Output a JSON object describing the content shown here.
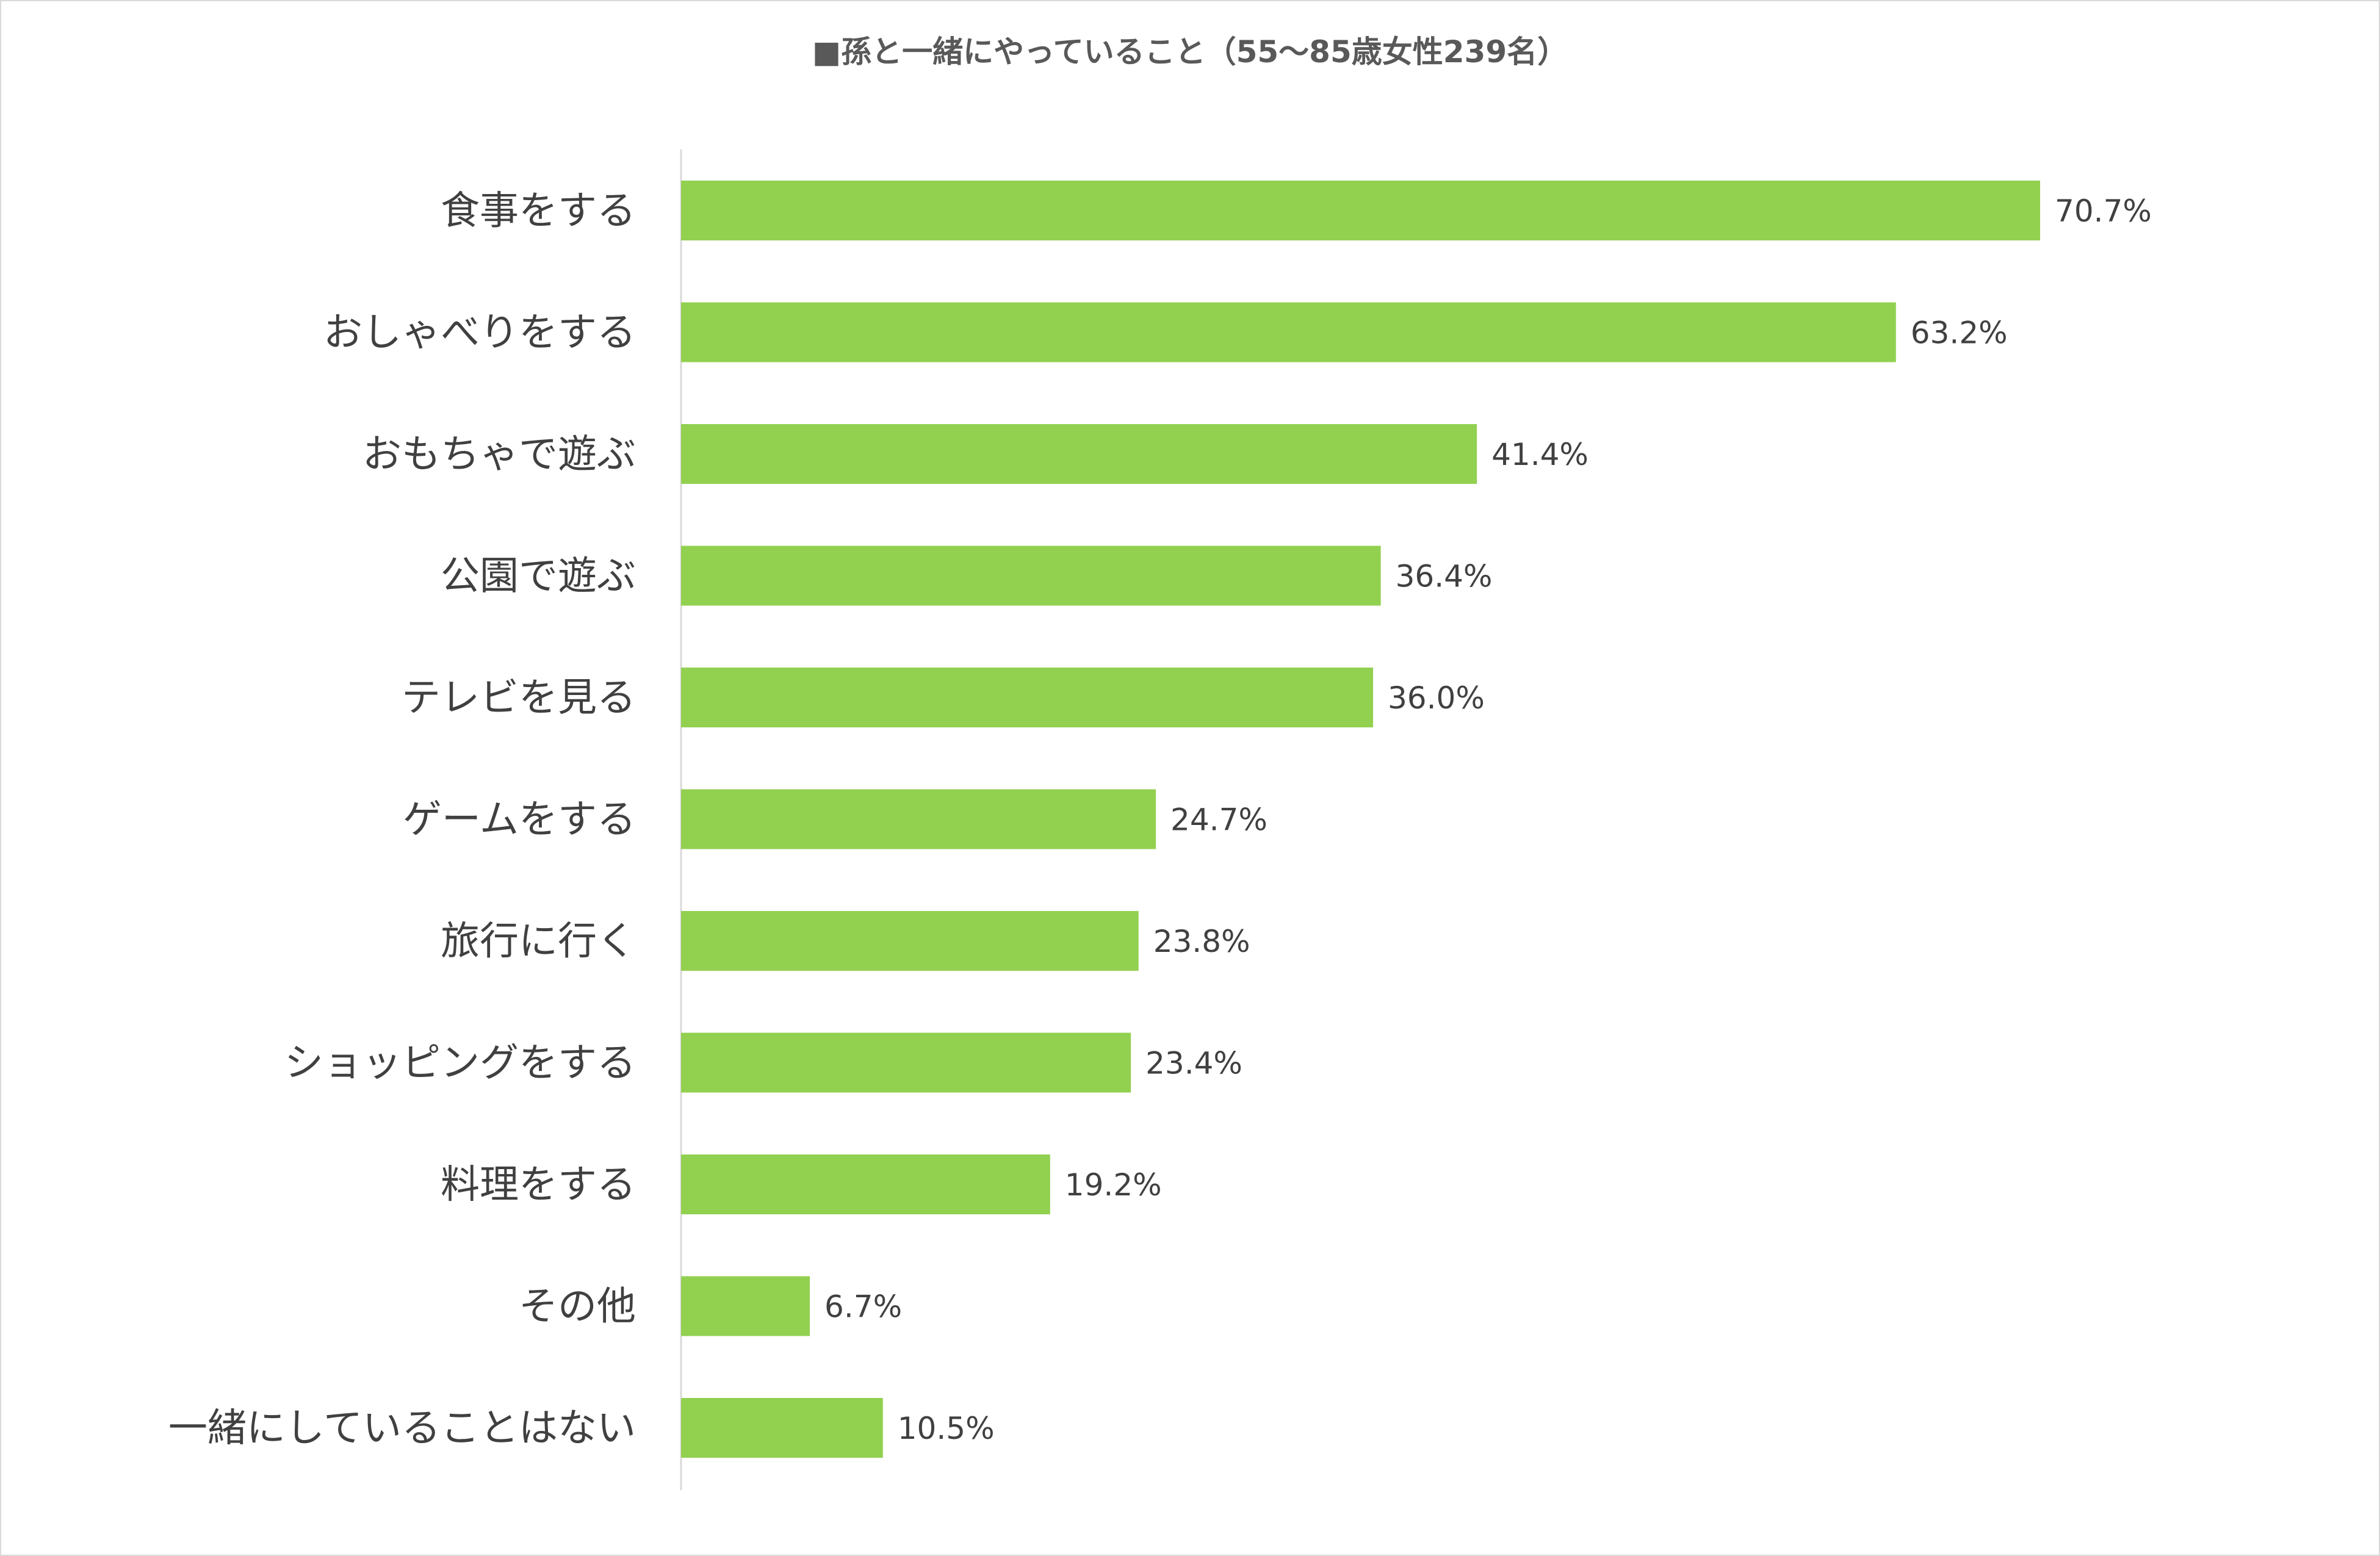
{
  "chart_data": {
    "type": "bar",
    "orientation": "horizontal",
    "title": "■孫と一緒にやっていること（55～85歳女性239名）",
    "categories": [
      "食事をする",
      "おしゃべりをする",
      "おもちゃで遊ぶ",
      "公園で遊ぶ",
      "テレビを見る",
      "ゲームをする",
      "旅行に行く",
      "ショッピングをする",
      "料理をする",
      "その他",
      "一緒にしていることはない"
    ],
    "values": [
      70.7,
      63.2,
      41.4,
      36.4,
      36.0,
      24.7,
      23.8,
      23.4,
      19.2,
      6.7,
      10.5
    ],
    "value_labels": [
      "70.7%",
      "63.2%",
      "41.4%",
      "36.4%",
      "36.0%",
      "24.7%",
      "23.8%",
      "23.4%",
      "19.2%",
      "6.7%",
      "10.5%"
    ],
    "xlim": [
      0,
      80
    ],
    "xlabel": "",
    "ylabel": "",
    "grid": false,
    "legend": "none",
    "bar_color": "#92d050",
    "axis_color": "#d9d9d9"
  }
}
